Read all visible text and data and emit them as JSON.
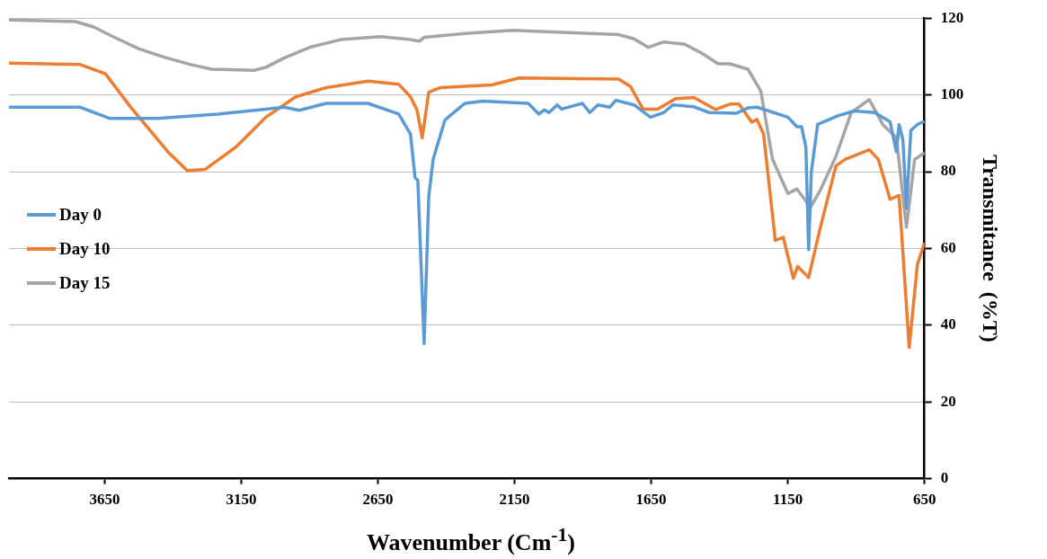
{
  "chart_data": {
    "type": "line",
    "xlabel": "Wavenumber (Cm$^{-1}$)",
    "ylabel": "Transmitance  (%T)",
    "xlim": [
      4000,
      650
    ],
    "xticks": [
      3650,
      3150,
      2650,
      2150,
      1650,
      1150,
      650
    ],
    "ylim": [
      0,
      120
    ],
    "yticks": [
      0,
      20,
      40,
      60,
      80,
      100,
      120
    ],
    "grid": "y",
    "legend": "left",
    "marker": "none",
    "line_style": "solid",
    "series": [
      {
        "name": "Day 0",
        "color": "#5b9bd5",
        "x": [
          4000,
          3739,
          3633,
          3458,
          3236,
          3060,
          2994,
          2938,
          2839,
          2686,
          2574,
          2531,
          2514,
          2504,
          2481,
          2464,
          2448,
          2405,
          2388,
          2332,
          2266,
          2100,
          2061,
          2041,
          2024,
          1994,
          1978,
          1902,
          1875,
          1845,
          1802,
          1779,
          1713,
          1653,
          1604,
          1570,
          1494,
          1438,
          1339,
          1296,
          1263,
          1150,
          1117,
          1100,
          1084,
          1074,
          1064,
          1041,
          965,
          908,
          832,
          776,
          753,
          743,
          729,
          716,
          700,
          676,
          650
        ],
        "values": [
          96.8,
          96.8,
          93.9,
          93.9,
          95,
          96.3,
          96.8,
          96,
          97.8,
          97.8,
          95,
          89.8,
          78.4,
          77.7,
          35.2,
          73.5,
          83.2,
          93.4,
          94.5,
          97.8,
          98.4,
          97.8,
          95,
          96.1,
          95.4,
          97.4,
          96.3,
          97.8,
          95.4,
          97.4,
          96.8,
          98.6,
          97.4,
          94.2,
          95.4,
          97.4,
          96.9,
          95.4,
          95.2,
          96.6,
          96.8,
          94.2,
          91.7,
          91.7,
          86.4,
          59.7,
          80,
          92.3,
          94.6,
          95.8,
          95.4,
          93,
          85.2,
          92.3,
          88.3,
          70.4,
          90.7,
          92.3,
          93.1
        ]
      },
      {
        "name": "Day 10",
        "color": "#ed7d31",
        "x": [
          4000,
          3739,
          3647,
          3557,
          3481,
          3415,
          3348,
          3282,
          3170,
          3060,
          2951,
          2839,
          2686,
          2574,
          2531,
          2507,
          2488,
          2464,
          2421,
          2233,
          2133,
          1769,
          1726,
          1680,
          1627,
          1561,
          1494,
          1415,
          1362,
          1329,
          1282,
          1263,
          1239,
          1196,
          1167,
          1130,
          1114,
          1074,
          1031,
          974,
          941,
          852,
          819,
          776,
          743,
          706,
          676,
          650
        ],
        "values": [
          108.3,
          107.9,
          105.5,
          97,
          90.5,
          84.9,
          80.3,
          80.6,
          86.4,
          94.2,
          99.5,
          101.9,
          103.6,
          102.8,
          99.5,
          96.1,
          88.8,
          100.7,
          101.9,
          102.6,
          104.4,
          104.1,
          102.2,
          96.3,
          96.3,
          99,
          99.3,
          96.2,
          97.6,
          97.6,
          92.9,
          93.6,
          89.8,
          62.1,
          62.9,
          52.2,
          55.3,
          52.4,
          65.5,
          81.5,
          83.2,
          85.7,
          83.2,
          72.8,
          73.8,
          34.2,
          55.8,
          61.4
        ]
      },
      {
        "name": "Day 15",
        "color": "#a5a5a5",
        "x": [
          4000,
          3756,
          3690,
          3623,
          3524,
          3435,
          3335,
          3259,
          3103,
          3060,
          2994,
          2895,
          2786,
          2640,
          2531,
          2498,
          2481,
          2332,
          2157,
          1769,
          1713,
          1660,
          1604,
          1527,
          1461,
          1405,
          1362,
          1296,
          1249,
          1206,
          1150,
          1117,
          1067,
          1031,
          974,
          918,
          852,
          802,
          753,
          716,
          686,
          650
        ],
        "values": [
          119.5,
          119.1,
          117.7,
          115.3,
          112,
          109.9,
          107.9,
          106.7,
          106.4,
          107.2,
          109.6,
          112.5,
          114.4,
          115.2,
          114.4,
          114,
          115,
          116,
          116.8,
          115.7,
          114.6,
          112.4,
          113.8,
          113.2,
          110.7,
          108.1,
          108.1,
          106.7,
          101,
          83.2,
          74.3,
          75.5,
          70.7,
          75.2,
          84,
          95.4,
          98.8,
          92.2,
          88.9,
          65.5,
          83.2,
          84.9
        ]
      }
    ]
  }
}
